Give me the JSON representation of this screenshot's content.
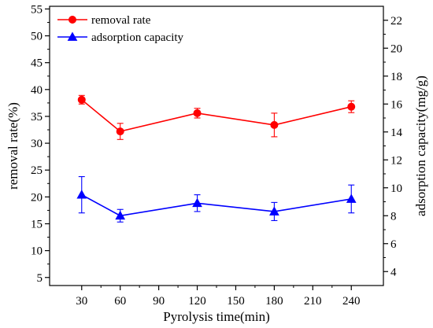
{
  "chart_data": {
    "type": "line",
    "xlabel": "Pyrolysis time(min)",
    "ylabel_left": "removal rate(%)",
    "ylabel_right": "adsorption capacity(mg/g)",
    "xlim": [
      5,
      265
    ],
    "ylim_left": [
      3.5,
      55.5
    ],
    "ylim_right": [
      3,
      23
    ],
    "x_ticks": [
      30,
      60,
      90,
      120,
      150,
      180,
      210,
      240
    ],
    "y_ticks_left": [
      5,
      10,
      15,
      20,
      25,
      30,
      35,
      40,
      45,
      50,
      55
    ],
    "y_ticks_right": [
      4,
      6,
      8,
      10,
      12,
      14,
      16,
      18,
      20,
      22
    ],
    "legend_position": "top-left",
    "series": [
      {
        "name": "removal rate",
        "axis": "left",
        "marker": "circle",
        "color": "#ff0000",
        "x": [
          30,
          60,
          120,
          180,
          240
        ],
        "y": [
          38.1,
          32.2,
          35.6,
          33.4,
          36.8
        ],
        "error": [
          0.8,
          1.5,
          0.9,
          2.2,
          1.1
        ]
      },
      {
        "name": "adsorption capacity",
        "axis": "right",
        "marker": "triangle",
        "color": "#0000ff",
        "x": [
          30,
          60,
          120,
          180,
          240
        ],
        "y": [
          9.5,
          8.0,
          8.9,
          8.3,
          9.2
        ],
        "error": [
          1.3,
          0.45,
          0.6,
          0.65,
          1.0
        ]
      }
    ]
  }
}
